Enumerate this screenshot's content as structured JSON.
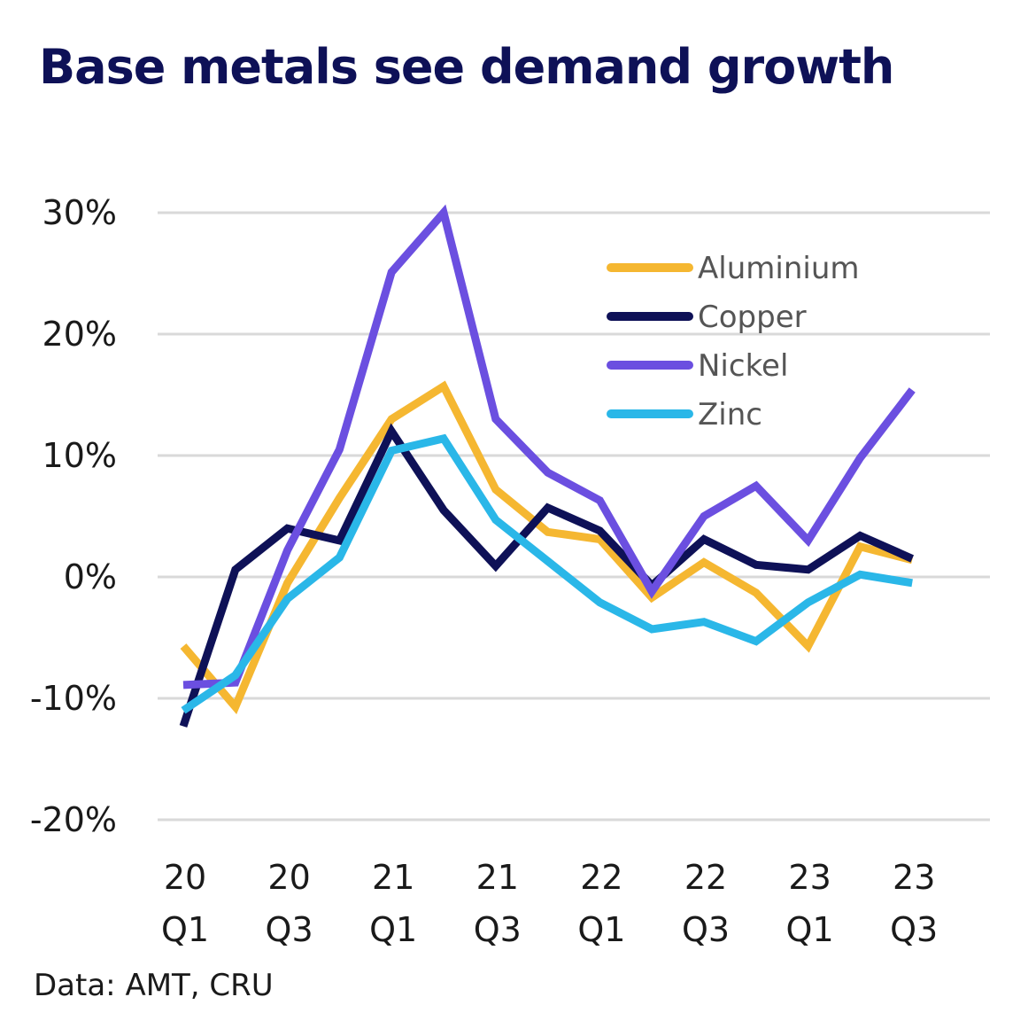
{
  "title": "Base metals see demand growth",
  "source": "Data: AMT, CRU",
  "chart_data": {
    "type": "line",
    "x": [
      "20Q1",
      "20Q2",
      "20Q3",
      "20Q4",
      "21Q1",
      "21Q2",
      "21Q3",
      "21Q4",
      "22Q1",
      "22Q2",
      "22Q3",
      "22Q4",
      "23Q1",
      "23Q2",
      "23Q3"
    ],
    "x_tick_labels": [
      {
        "index": 0,
        "line1": "20",
        "line2": "Q1"
      },
      {
        "index": 2,
        "line1": "20",
        "line2": "Q3"
      },
      {
        "index": 4,
        "line1": "21",
        "line2": "Q1"
      },
      {
        "index": 6,
        "line1": "21",
        "line2": "Q3"
      },
      {
        "index": 8,
        "line1": "22",
        "line2": "Q1"
      },
      {
        "index": 10,
        "line1": "22",
        "line2": "Q3"
      },
      {
        "index": 12,
        "line1": "23",
        "line2": "Q1"
      },
      {
        "index": 14,
        "line1": "23",
        "line2": "Q3"
      }
    ],
    "y_ticks": [
      30,
      20,
      10,
      0,
      -10,
      -20
    ],
    "y_tick_labels": [
      "30%",
      "20%",
      "10%",
      "0%",
      "-10%",
      "-20%"
    ],
    "ylim": [
      -20,
      30
    ],
    "grid": "horizontal",
    "legend_position": "top-right",
    "series": [
      {
        "name": "Aluminium",
        "color": "#f5b731",
        "values": [
          -5.7,
          -10.7,
          -0.5,
          6.5,
          13.0,
          15.7,
          7.2,
          3.7,
          3.1,
          -1.7,
          1.2,
          -1.3,
          -5.7,
          2.5,
          1.4
        ]
      },
      {
        "name": "Copper",
        "color": "#0e1157",
        "values": [
          -12.3,
          0.6,
          4.0,
          3.0,
          12.0,
          5.5,
          0.9,
          5.7,
          3.8,
          -0.7,
          3.1,
          1.0,
          0.6,
          3.4,
          1.5
        ]
      },
      {
        "name": "Nickel",
        "color": "#6b4fe0",
        "values": [
          -8.9,
          -8.7,
          2.2,
          10.5,
          25.1,
          30.0,
          13.0,
          8.6,
          6.3,
          -1.2,
          5.0,
          7.5,
          3.0,
          9.8,
          15.4
        ]
      },
      {
        "name": "Zinc",
        "color": "#2ab7e8",
        "values": [
          -11.0,
          -8.1,
          -1.8,
          1.6,
          10.4,
          11.4,
          4.7,
          1.3,
          -2.1,
          -4.3,
          -3.7,
          -5.3,
          -2.1,
          0.2,
          -0.5
        ]
      }
    ]
  }
}
